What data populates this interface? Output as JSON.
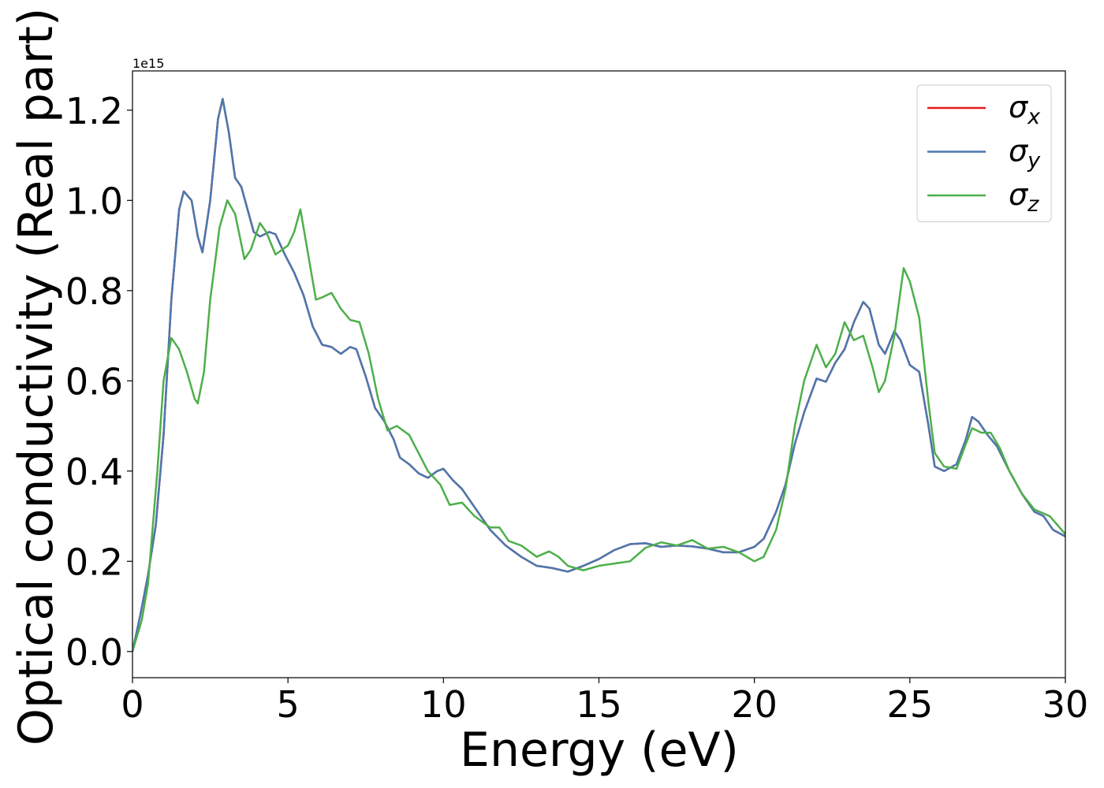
{
  "chart_data": {
    "type": "line",
    "xlabel": "Energy (eV)",
    "ylabel": "Optical conductivity (Real part)",
    "y_offset_label": "1e15",
    "xlim": [
      0,
      30
    ],
    "xticks": [
      0,
      5,
      10,
      15,
      20,
      25,
      30
    ],
    "ylim": [
      -0.058,
      1.287
    ],
    "yticks": [
      {
        "value": 0,
        "label": "0.0"
      },
      0.2,
      0.4,
      0.6,
      0.8,
      {
        "value": 1,
        "label": "1.0"
      },
      1.2
    ],
    "grid": false,
    "legend": "upper right",
    "series": [
      {
        "name": "σx",
        "color": "#e41a1c",
        "x": [
          0,
          0.25,
          0.5,
          0.75,
          1.0,
          1.25,
          1.5,
          1.65,
          1.9,
          2.1,
          2.25,
          2.5,
          2.75,
          2.9,
          3.1,
          3.3,
          3.5,
          3.7,
          3.9,
          4.1,
          4.4,
          4.6,
          4.9,
          5.2,
          5.5,
          5.8,
          6.1,
          6.4,
          6.7,
          7.0,
          7.2,
          7.5,
          7.8,
          8.1,
          8.4,
          8.6,
          8.9,
          9.2,
          9.5,
          9.8,
          10.0,
          10.3,
          10.6,
          11,
          11.5,
          12,
          12.5,
          13,
          13.5,
          14,
          14.5,
          15,
          15.5,
          16,
          16.5,
          17,
          17.5,
          18,
          18.5,
          19,
          19.5,
          20,
          20.3,
          20.7,
          21,
          21.3,
          21.6,
          22,
          22.3,
          22.6,
          22.9,
          23.2,
          23.5,
          23.7,
          24,
          24.2,
          24.5,
          24.7,
          25,
          25.3,
          25.6,
          25.8,
          26.1,
          26.5,
          26.8,
          27,
          27.2,
          27.5,
          27.8,
          28.2,
          28.6,
          29,
          29.3,
          29.6,
          30
        ],
        "values": [
          0,
          0.08,
          0.17,
          0.28,
          0.48,
          0.78,
          0.98,
          1.02,
          1.0,
          0.92,
          0.885,
          1.0,
          1.18,
          1.225,
          1.15,
          1.05,
          1.03,
          0.98,
          0.93,
          0.92,
          0.93,
          0.925,
          0.88,
          0.84,
          0.79,
          0.72,
          0.68,
          0.675,
          0.66,
          0.675,
          0.67,
          0.61,
          0.54,
          0.51,
          0.47,
          0.43,
          0.415,
          0.395,
          0.385,
          0.4,
          0.405,
          0.38,
          0.36,
          0.32,
          0.27,
          0.235,
          0.21,
          0.19,
          0.185,
          0.177,
          0.19,
          0.205,
          0.225,
          0.238,
          0.24,
          0.232,
          0.235,
          0.233,
          0.228,
          0.22,
          0.22,
          0.232,
          0.25,
          0.31,
          0.37,
          0.46,
          0.53,
          0.605,
          0.598,
          0.64,
          0.67,
          0.73,
          0.775,
          0.76,
          0.68,
          0.66,
          0.71,
          0.69,
          0.635,
          0.62,
          0.5,
          0.41,
          0.4,
          0.415,
          0.47,
          0.52,
          0.51,
          0.48,
          0.455,
          0.4,
          0.35,
          0.31,
          0.3,
          0.27,
          0.255
        ]
      },
      {
        "name": "σy",
        "color": "#4a78b0",
        "x": [
          0,
          0.25,
          0.5,
          0.75,
          1.0,
          1.25,
          1.5,
          1.65,
          1.9,
          2.1,
          2.25,
          2.5,
          2.75,
          2.9,
          3.1,
          3.3,
          3.5,
          3.7,
          3.9,
          4.1,
          4.4,
          4.6,
          4.9,
          5.2,
          5.5,
          5.8,
          6.1,
          6.4,
          6.7,
          7.0,
          7.2,
          7.5,
          7.8,
          8.1,
          8.4,
          8.6,
          8.9,
          9.2,
          9.5,
          9.8,
          10.0,
          10.3,
          10.6,
          11,
          11.5,
          12,
          12.5,
          13,
          13.5,
          14,
          14.5,
          15,
          15.5,
          16,
          16.5,
          17,
          17.5,
          18,
          18.5,
          19,
          19.5,
          20,
          20.3,
          20.7,
          21,
          21.3,
          21.6,
          22,
          22.3,
          22.6,
          22.9,
          23.2,
          23.5,
          23.7,
          24,
          24.2,
          24.5,
          24.7,
          25,
          25.3,
          25.6,
          25.8,
          26.1,
          26.5,
          26.8,
          27,
          27.2,
          27.5,
          27.8,
          28.2,
          28.6,
          29,
          29.3,
          29.6,
          30
        ],
        "values": [
          0,
          0.08,
          0.17,
          0.28,
          0.48,
          0.78,
          0.98,
          1.02,
          1.0,
          0.92,
          0.885,
          1.0,
          1.18,
          1.225,
          1.15,
          1.05,
          1.03,
          0.98,
          0.93,
          0.92,
          0.93,
          0.925,
          0.88,
          0.84,
          0.79,
          0.72,
          0.68,
          0.675,
          0.66,
          0.675,
          0.67,
          0.61,
          0.54,
          0.51,
          0.47,
          0.43,
          0.415,
          0.395,
          0.385,
          0.4,
          0.405,
          0.38,
          0.36,
          0.32,
          0.27,
          0.235,
          0.21,
          0.19,
          0.185,
          0.177,
          0.19,
          0.205,
          0.225,
          0.238,
          0.24,
          0.232,
          0.235,
          0.233,
          0.228,
          0.22,
          0.22,
          0.232,
          0.25,
          0.31,
          0.37,
          0.46,
          0.53,
          0.605,
          0.598,
          0.64,
          0.67,
          0.73,
          0.775,
          0.76,
          0.68,
          0.66,
          0.71,
          0.69,
          0.635,
          0.62,
          0.5,
          0.41,
          0.4,
          0.415,
          0.47,
          0.52,
          0.51,
          0.48,
          0.455,
          0.4,
          0.35,
          0.31,
          0.3,
          0.27,
          0.255
        ]
      },
      {
        "name": "σz",
        "color": "#4daf4a",
        "x": [
          0,
          0.3,
          0.5,
          0.8,
          1.0,
          1.25,
          1.5,
          1.75,
          2.0,
          2.1,
          2.3,
          2.5,
          2.8,
          3.05,
          3.3,
          3.6,
          3.8,
          4.1,
          4.3,
          4.6,
          5.0,
          5.2,
          5.4,
          5.6,
          5.9,
          6.1,
          6.4,
          6.7,
          7.0,
          7.3,
          7.6,
          7.9,
          8.2,
          8.5,
          8.9,
          9.2,
          9.5,
          9.9,
          10.2,
          10.6,
          11,
          11.5,
          11.8,
          12.1,
          12.5,
          13,
          13.4,
          13.7,
          14,
          14.5,
          15,
          15.5,
          16,
          16.5,
          17,
          17.5,
          18,
          18.5,
          19,
          19.5,
          20,
          20.3,
          20.7,
          21,
          21.3,
          21.6,
          22,
          22.3,
          22.6,
          22.9,
          23.2,
          23.5,
          23.8,
          24,
          24.2,
          24.5,
          24.8,
          25.0,
          25.3,
          25.6,
          25.8,
          26.1,
          26.5,
          26.8,
          27,
          27.3,
          27.6,
          27.9,
          28.2,
          28.6,
          29,
          29.5,
          30
        ],
        "values": [
          0,
          0.07,
          0.15,
          0.4,
          0.6,
          0.695,
          0.67,
          0.62,
          0.56,
          0.55,
          0.62,
          0.78,
          0.94,
          1.0,
          0.97,
          0.87,
          0.89,
          0.95,
          0.93,
          0.88,
          0.9,
          0.93,
          0.98,
          0.9,
          0.78,
          0.785,
          0.795,
          0.76,
          0.735,
          0.73,
          0.66,
          0.56,
          0.49,
          0.5,
          0.48,
          0.44,
          0.4,
          0.37,
          0.325,
          0.33,
          0.3,
          0.275,
          0.275,
          0.245,
          0.235,
          0.21,
          0.222,
          0.21,
          0.19,
          0.18,
          0.19,
          0.195,
          0.2,
          0.23,
          0.242,
          0.235,
          0.247,
          0.228,
          0.232,
          0.22,
          0.2,
          0.21,
          0.27,
          0.36,
          0.5,
          0.6,
          0.68,
          0.63,
          0.66,
          0.73,
          0.69,
          0.7,
          0.63,
          0.575,
          0.6,
          0.7,
          0.85,
          0.82,
          0.74,
          0.55,
          0.44,
          0.41,
          0.405,
          0.46,
          0.495,
          0.485,
          0.485,
          0.45,
          0.4,
          0.35,
          0.315,
          0.3,
          0.26
        ]
      }
    ]
  }
}
